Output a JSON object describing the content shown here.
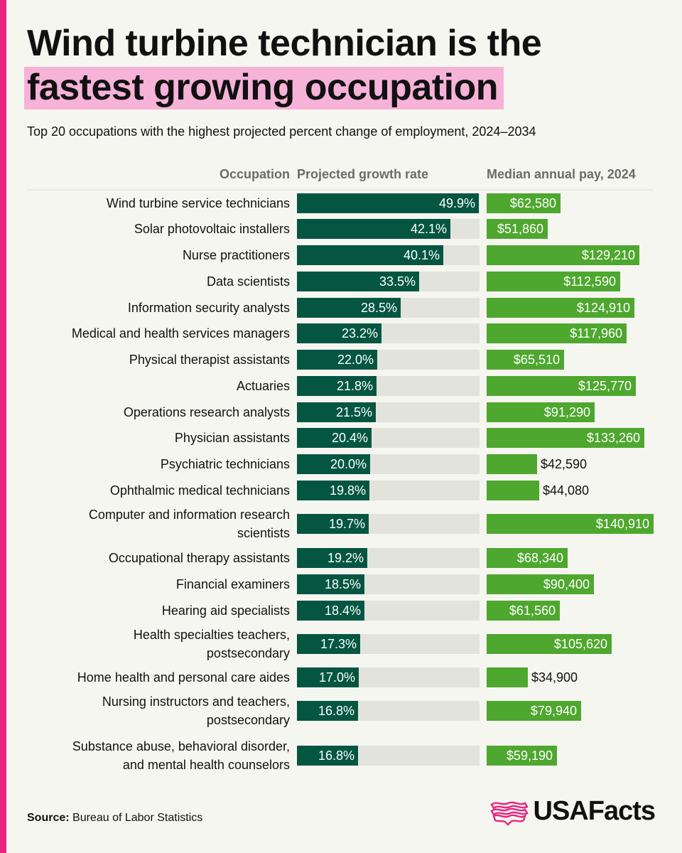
{
  "title": {
    "line1": "Wind turbine technician is the",
    "line2": "fastest growing occupation"
  },
  "subtitle": "Top 20 occupations with the highest projected percent change of employment, 2024–2034",
  "chart_data": {
    "type": "bar",
    "columns": {
      "occupation": "Occupation",
      "growth": "Projected growth rate",
      "pay": "Median annual pay, 2024"
    },
    "rows": [
      {
        "name": [
          "Wind turbine service technicians"
        ],
        "growth": 49.9,
        "growth_label": "49.9%",
        "pay": 62580,
        "pay_label": "$62,580"
      },
      {
        "name": [
          "Solar photovoltaic installers"
        ],
        "growth": 42.1,
        "growth_label": "42.1%",
        "pay": 51860,
        "pay_label": "$51,860"
      },
      {
        "name": [
          "Nurse practitioners"
        ],
        "growth": 40.1,
        "growth_label": "40.1%",
        "pay": 129210,
        "pay_label": "$129,210"
      },
      {
        "name": [
          "Data scientists"
        ],
        "growth": 33.5,
        "growth_label": "33.5%",
        "pay": 112590,
        "pay_label": "$112,590"
      },
      {
        "name": [
          "Information security analysts"
        ],
        "growth": 28.5,
        "growth_label": "28.5%",
        "pay": 124910,
        "pay_label": "$124,910"
      },
      {
        "name": [
          "Medical and health services managers"
        ],
        "growth": 23.2,
        "growth_label": "23.2%",
        "pay": 117960,
        "pay_label": "$117,960"
      },
      {
        "name": [
          "Physical therapist assistants"
        ],
        "growth": 22.0,
        "growth_label": "22.0%",
        "pay": 65510,
        "pay_label": "$65,510"
      },
      {
        "name": [
          "Actuaries"
        ],
        "growth": 21.8,
        "growth_label": "21.8%",
        "pay": 125770,
        "pay_label": "$125,770"
      },
      {
        "name": [
          "Operations research analysts"
        ],
        "growth": 21.5,
        "growth_label": "21.5%",
        "pay": 91290,
        "pay_label": "$91,290"
      },
      {
        "name": [
          "Physician assistants"
        ],
        "growth": 20.4,
        "growth_label": "20.4%",
        "pay": 133260,
        "pay_label": "$133,260"
      },
      {
        "name": [
          "Psychiatric technicians"
        ],
        "growth": 20.0,
        "growth_label": "20.0%",
        "pay": 42590,
        "pay_label": "$42,590"
      },
      {
        "name": [
          "Ophthalmic medical technicians"
        ],
        "growth": 19.8,
        "growth_label": "19.8%",
        "pay": 44080,
        "pay_label": "$44,080"
      },
      {
        "name": [
          "Computer and information research",
          "scientists"
        ],
        "growth": 19.7,
        "growth_label": "19.7%",
        "pay": 140910,
        "pay_label": "$140,910"
      },
      {
        "name": [
          "Occupational therapy assistants"
        ],
        "growth": 19.2,
        "growth_label": "19.2%",
        "pay": 68340,
        "pay_label": "$68,340"
      },
      {
        "name": [
          "Financial examiners"
        ],
        "growth": 18.5,
        "growth_label": "18.5%",
        "pay": 90400,
        "pay_label": "$90,400"
      },
      {
        "name": [
          "Hearing aid specialists"
        ],
        "growth": 18.4,
        "growth_label": "18.4%",
        "pay": 61560,
        "pay_label": "$61,560"
      },
      {
        "name": [
          "Health specialties teachers,",
          "postsecondary"
        ],
        "growth": 17.3,
        "growth_label": "17.3%",
        "pay": 105620,
        "pay_label": "$105,620"
      },
      {
        "name": [
          "Home health and personal care aides"
        ],
        "growth": 17.0,
        "growth_label": "17.0%",
        "pay": 34900,
        "pay_label": "$34,900"
      },
      {
        "name": [
          "Nursing instructors and teachers,",
          "postsecondary"
        ],
        "growth": 16.8,
        "growth_label": "16.8%",
        "pay": 79940,
        "pay_label": "$79,940"
      },
      {
        "name": [
          "Substance abuse, behavioral disorder,",
          "and mental health counselors"
        ],
        "growth": 16.8,
        "growth_label": "16.8%",
        "pay": 59190,
        "pay_label": "$59,190"
      }
    ],
    "growth_max": 50,
    "pay_max": 140910
  },
  "colors": {
    "growth_bar": "#045641",
    "growth_track": "#e3e3de",
    "pay_bar": "#4ea72e",
    "header_text": "#6b6b6b",
    "accent": "#e8247f"
  },
  "source": {
    "label": "Source:",
    "text": "Bureau of Labor Statistics"
  },
  "logo": {
    "text": "USAFacts",
    "icon": "usa-map-flag-icon"
  }
}
